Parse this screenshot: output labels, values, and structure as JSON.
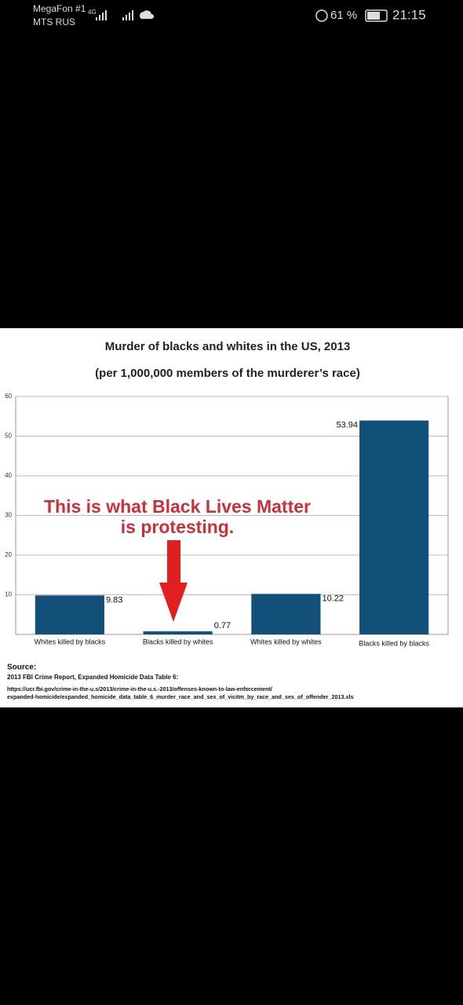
{
  "status_bar": {
    "carrier_1": "MegaFon #1",
    "network": "4G",
    "carrier_2": "MTS RUS",
    "battery": "61 %",
    "time": "21:15"
  },
  "chart_data": {
    "type": "bar",
    "title": "Murder of blacks and whites in the US, 2013",
    "subtitle": "(per 1,000,000 members of the murderer’s race)",
    "categories": [
      "Whites killed by blacks",
      "Blacks killed by whites",
      "Whites killed by whites",
      "Blacks killed by blacks"
    ],
    "values": [
      9.83,
      0.77,
      10.22,
      53.94
    ],
    "color": "#12507a",
    "ylim": [
      0,
      60
    ],
    "yticks": [
      10,
      20,
      30,
      40,
      50,
      60
    ],
    "grid": true,
    "annotation": [
      "This is what Black Lives Matter",
      "is protesting."
    ],
    "annotation_color": "#c9303a",
    "source_label": "Source:",
    "source_text": "2013 FBI Crime Report, Expanded Homicide Data Table 6:",
    "source_url": [
      "https://ucr.fbi.gov/crime-in-the-u.s/2013/crime-in-the-u.s.-2013/offenses-known-to-law-enforcement/",
      "expanded-homicide/expanded_homicide_data_table_6_murder_race_and_sex_of_vicitm_by_race_and_sex_of_offender_2013.xls"
    ]
  }
}
